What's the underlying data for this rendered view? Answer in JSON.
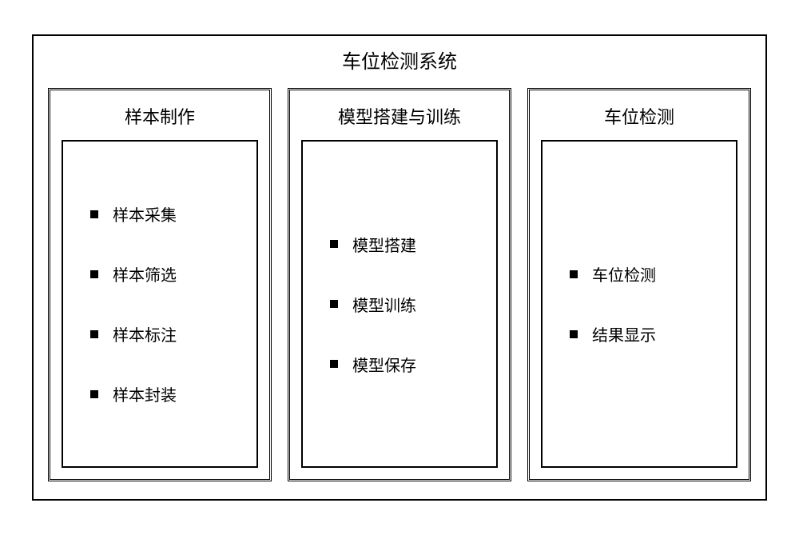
{
  "diagram": {
    "type": "infographic",
    "title": "车位检测系统",
    "background_color": "#ffffff",
    "border_color": "#000000",
    "text_color": "#000000",
    "title_fontsize": 24,
    "module_title_fontsize": 22,
    "item_fontsize": 20,
    "modules": [
      {
        "title": "样本制作",
        "items": [
          "样本采集",
          "样本筛选",
          "样本标注",
          "样本封装"
        ]
      },
      {
        "title": "模型搭建与训练",
        "items": [
          "模型搭建",
          "模型训练",
          "模型保存"
        ]
      },
      {
        "title": "车位检测",
        "items": [
          "车位检测",
          "结果显示"
        ]
      }
    ]
  }
}
